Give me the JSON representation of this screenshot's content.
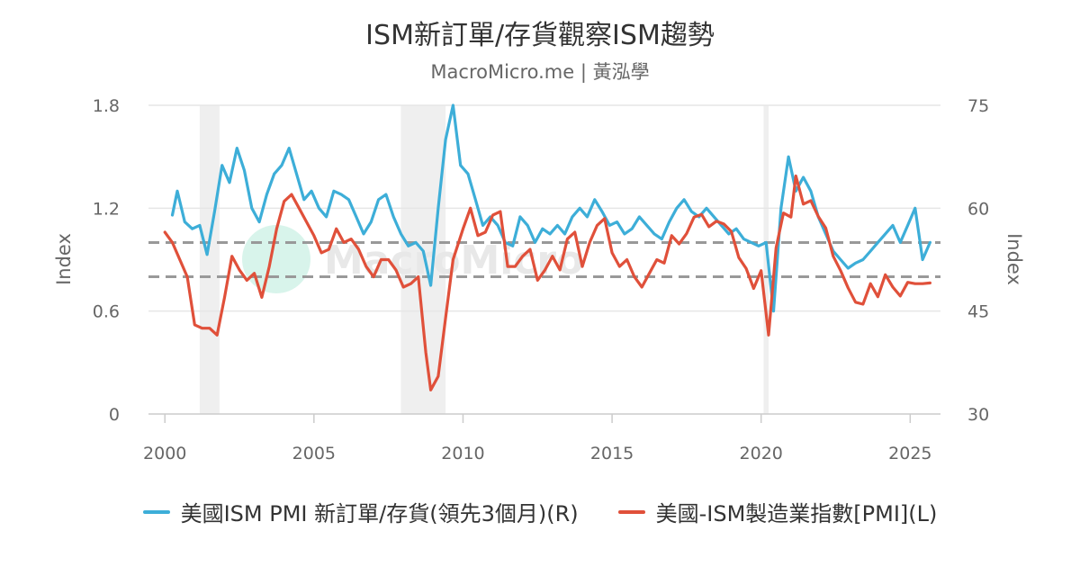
{
  "page": {
    "title": "ISM新訂單/存貨觀察ISM趨勢",
    "subtitle": "MacroMicro.me | 黃泓學",
    "watermark": "MacroMicro"
  },
  "colors": {
    "series_r": "#3daed8",
    "series_l": "#e0503a",
    "grid": "#e6e6e6",
    "recession": "#efefef",
    "reference_line": "#999999",
    "watermark_circle": "#c8f0e2"
  },
  "chart_data": {
    "type": "line",
    "title": "ISM新訂單/存貨觀察ISM趨勢",
    "subtitle": "MacroMicro.me | 黃泓學",
    "x_axis": {
      "type": "date",
      "range": [
        "2000-01",
        "2025-12"
      ],
      "ticks": [
        "2000",
        "2005",
        "2010",
        "2015",
        "2020",
        "2025"
      ]
    },
    "y_left": {
      "label": "Index",
      "range": [
        0,
        1.8
      ],
      "ticks": [
        "0",
        "0.6",
        "1.2",
        "1.8"
      ]
    },
    "y_right": {
      "label": "Index",
      "range": [
        30,
        75
      ],
      "ticks": [
        "30",
        "45",
        "60",
        "75"
      ]
    },
    "reference_lines_left": [
      1.0,
      0.8
    ],
    "recession_bands": [
      {
        "start": "2001-03",
        "end": "2001-11"
      },
      {
        "start": "2007-12",
        "end": "2009-06"
      },
      {
        "start": "2020-02",
        "end": "2020-04"
      }
    ],
    "grid": true,
    "legend_position": "bottom",
    "series": [
      {
        "name": "美國ISM PMI 新訂單/存貨(領先3個月)(R)",
        "axis": "right",
        "points": [
          [
            "2000-04",
            1.16
          ],
          [
            "2000-06",
            1.3
          ],
          [
            "2000-09",
            1.12
          ],
          [
            "2000-12",
            1.08
          ],
          [
            "2001-03",
            1.1
          ],
          [
            "2001-06",
            0.93
          ],
          [
            "2001-09",
            1.18
          ],
          [
            "2001-12",
            1.45
          ],
          [
            "2002-03",
            1.35
          ],
          [
            "2002-06",
            1.55
          ],
          [
            "2002-09",
            1.42
          ],
          [
            "2002-12",
            1.2
          ],
          [
            "2003-03",
            1.12
          ],
          [
            "2003-06",
            1.28
          ],
          [
            "2003-09",
            1.4
          ],
          [
            "2003-12",
            1.45
          ],
          [
            "2004-03",
            1.55
          ],
          [
            "2004-06",
            1.4
          ],
          [
            "2004-09",
            1.25
          ],
          [
            "2004-12",
            1.3
          ],
          [
            "2005-03",
            1.2
          ],
          [
            "2005-06",
            1.15
          ],
          [
            "2005-09",
            1.3
          ],
          [
            "2005-12",
            1.28
          ],
          [
            "2006-03",
            1.25
          ],
          [
            "2006-06",
            1.15
          ],
          [
            "2006-09",
            1.05
          ],
          [
            "2006-12",
            1.12
          ],
          [
            "2007-03",
            1.25
          ],
          [
            "2007-06",
            1.28
          ],
          [
            "2007-09",
            1.15
          ],
          [
            "2007-12",
            1.05
          ],
          [
            "2008-03",
            0.98
          ],
          [
            "2008-06",
            1.0
          ],
          [
            "2008-09",
            0.95
          ],
          [
            "2008-12",
            0.75
          ],
          [
            "2009-03",
            1.2
          ],
          [
            "2009-06",
            1.6
          ],
          [
            "2009-09",
            1.8
          ],
          [
            "2009-12",
            1.45
          ],
          [
            "2010-03",
            1.4
          ],
          [
            "2010-06",
            1.25
          ],
          [
            "2010-09",
            1.1
          ],
          [
            "2010-12",
            1.15
          ],
          [
            "2011-03",
            1.1
          ],
          [
            "2011-06",
            1.0
          ],
          [
            "2011-09",
            0.98
          ],
          [
            "2011-12",
            1.15
          ],
          [
            "2012-03",
            1.1
          ],
          [
            "2012-06",
            1.0
          ],
          [
            "2012-09",
            1.08
          ],
          [
            "2012-12",
            1.05
          ],
          [
            "2013-03",
            1.1
          ],
          [
            "2013-06",
            1.05
          ],
          [
            "2013-09",
            1.15
          ],
          [
            "2013-12",
            1.2
          ],
          [
            "2014-03",
            1.15
          ],
          [
            "2014-06",
            1.25
          ],
          [
            "2014-09",
            1.18
          ],
          [
            "2014-12",
            1.1
          ],
          [
            "2015-03",
            1.12
          ],
          [
            "2015-06",
            1.05
          ],
          [
            "2015-09",
            1.08
          ],
          [
            "2015-12",
            1.15
          ],
          [
            "2016-03",
            1.1
          ],
          [
            "2016-06",
            1.05
          ],
          [
            "2016-09",
            1.02
          ],
          [
            "2016-12",
            1.12
          ],
          [
            "2017-03",
            1.2
          ],
          [
            "2017-06",
            1.25
          ],
          [
            "2017-09",
            1.18
          ],
          [
            "2017-12",
            1.15
          ],
          [
            "2018-03",
            1.2
          ],
          [
            "2018-06",
            1.15
          ],
          [
            "2018-09",
            1.1
          ],
          [
            "2018-12",
            1.05
          ],
          [
            "2019-03",
            1.08
          ],
          [
            "2019-06",
            1.02
          ],
          [
            "2019-09",
            1.0
          ],
          [
            "2019-12",
            0.98
          ],
          [
            "2020-03",
            1.0
          ],
          [
            "2020-06",
            0.6
          ],
          [
            "2020-09",
            1.2
          ],
          [
            "2020-12",
            1.5
          ],
          [
            "2021-03",
            1.3
          ],
          [
            "2021-06",
            1.38
          ],
          [
            "2021-09",
            1.3
          ],
          [
            "2021-12",
            1.15
          ],
          [
            "2022-03",
            1.05
          ],
          [
            "2022-06",
            0.95
          ],
          [
            "2022-09",
            0.9
          ],
          [
            "2022-12",
            0.85
          ],
          [
            "2023-03",
            0.88
          ],
          [
            "2023-06",
            0.9
          ],
          [
            "2023-09",
            0.95
          ],
          [
            "2023-12",
            1.0
          ],
          [
            "2024-03",
            1.05
          ],
          [
            "2024-06",
            1.1
          ],
          [
            "2024-09",
            1.0
          ],
          [
            "2024-12",
            1.1
          ],
          [
            "2025-03",
            1.2
          ],
          [
            "2025-06",
            0.9
          ],
          [
            "2025-09",
            1.0
          ]
        ]
      },
      {
        "name": "美國-ISM製造業指數[PMI](L)",
        "axis": "left",
        "points": [
          [
            "2000-01",
            56.5
          ],
          [
            "2000-04",
            55.0
          ],
          [
            "2000-07",
            52.5
          ],
          [
            "2000-10",
            50.0
          ],
          [
            "2001-01",
            43.0
          ],
          [
            "2001-04",
            42.5
          ],
          [
            "2001-07",
            42.5
          ],
          [
            "2001-10",
            41.5
          ],
          [
            "2002-01",
            47.0
          ],
          [
            "2002-04",
            53.0
          ],
          [
            "2002-07",
            51.0
          ],
          [
            "2002-10",
            49.5
          ],
          [
            "2003-01",
            50.5
          ],
          [
            "2003-04",
            47.0
          ],
          [
            "2003-07",
            51.5
          ],
          [
            "2003-10",
            57.0
          ],
          [
            "2004-01",
            61.0
          ],
          [
            "2004-04",
            62.0
          ],
          [
            "2004-07",
            60.0
          ],
          [
            "2004-10",
            58.0
          ],
          [
            "2005-01",
            56.0
          ],
          [
            "2005-04",
            53.5
          ],
          [
            "2005-07",
            54.0
          ],
          [
            "2005-10",
            57.0
          ],
          [
            "2006-01",
            55.0
          ],
          [
            "2006-04",
            55.5
          ],
          [
            "2006-07",
            54.0
          ],
          [
            "2006-10",
            51.5
          ],
          [
            "2007-01",
            50.0
          ],
          [
            "2007-04",
            52.5
          ],
          [
            "2007-07",
            52.5
          ],
          [
            "2007-10",
            51.0
          ],
          [
            "2008-01",
            48.5
          ],
          [
            "2008-04",
            49.0
          ],
          [
            "2008-07",
            50.0
          ],
          [
            "2008-10",
            39.0
          ],
          [
            "2008-12",
            33.5
          ],
          [
            "2009-03",
            35.5
          ],
          [
            "2009-06",
            44.0
          ],
          [
            "2009-09",
            52.5
          ],
          [
            "2010-01",
            57.0
          ],
          [
            "2010-04",
            60.0
          ],
          [
            "2010-07",
            56.0
          ],
          [
            "2010-10",
            56.5
          ],
          [
            "2011-01",
            59.0
          ],
          [
            "2011-04",
            59.5
          ],
          [
            "2011-07",
            51.5
          ],
          [
            "2011-10",
            51.5
          ],
          [
            "2012-01",
            53.0
          ],
          [
            "2012-04",
            54.0
          ],
          [
            "2012-07",
            49.5
          ],
          [
            "2012-10",
            51.0
          ],
          [
            "2013-01",
            53.0
          ],
          [
            "2013-04",
            51.0
          ],
          [
            "2013-07",
            55.5
          ],
          [
            "2013-10",
            56.5
          ],
          [
            "2014-01",
            51.5
          ],
          [
            "2014-04",
            55.0
          ],
          [
            "2014-07",
            57.5
          ],
          [
            "2014-10",
            58.5
          ],
          [
            "2015-01",
            53.5
          ],
          [
            "2015-04",
            51.5
          ],
          [
            "2015-07",
            52.5
          ],
          [
            "2015-10",
            50.0
          ],
          [
            "2016-01",
            48.5
          ],
          [
            "2016-04",
            50.5
          ],
          [
            "2016-07",
            52.5
          ],
          [
            "2016-10",
            52.0
          ],
          [
            "2017-01",
            56.0
          ],
          [
            "2017-04",
            54.8
          ],
          [
            "2017-07",
            56.3
          ],
          [
            "2017-10",
            58.7
          ],
          [
            "2018-01",
            59.1
          ],
          [
            "2018-04",
            57.3
          ],
          [
            "2018-07",
            58.1
          ],
          [
            "2018-10",
            57.7
          ],
          [
            "2019-01",
            56.6
          ],
          [
            "2019-04",
            52.8
          ],
          [
            "2019-07",
            51.2
          ],
          [
            "2019-10",
            48.3
          ],
          [
            "2020-01",
            50.9
          ],
          [
            "2020-04",
            41.5
          ],
          [
            "2020-07",
            54.2
          ],
          [
            "2020-10",
            59.3
          ],
          [
            "2021-01",
            58.7
          ],
          [
            "2021-03",
            64.7
          ],
          [
            "2021-06",
            60.6
          ],
          [
            "2021-09",
            61.1
          ],
          [
            "2021-12",
            58.8
          ],
          [
            "2022-03",
            57.1
          ],
          [
            "2022-06",
            53.0
          ],
          [
            "2022-09",
            50.9
          ],
          [
            "2022-12",
            48.4
          ],
          [
            "2023-03",
            46.3
          ],
          [
            "2023-06",
            46.0
          ],
          [
            "2023-09",
            49.0
          ],
          [
            "2023-12",
            47.1
          ],
          [
            "2024-03",
            50.3
          ],
          [
            "2024-06",
            48.5
          ],
          [
            "2024-09",
            47.2
          ],
          [
            "2024-12",
            49.2
          ],
          [
            "2025-03",
            49.0
          ],
          [
            "2025-06",
            49.0
          ],
          [
            "2025-09",
            49.1
          ]
        ]
      }
    ]
  }
}
